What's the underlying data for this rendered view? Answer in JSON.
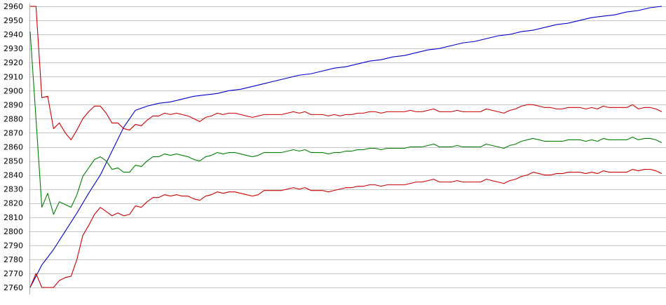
{
  "chart_data": {
    "type": "line",
    "title": "",
    "xlabel": "",
    "ylabel": "",
    "ylim": [
      2760,
      2960
    ],
    "xlim": [
      0,
      108
    ],
    "y_ticks": [
      2760,
      2770,
      2780,
      2790,
      2800,
      2810,
      2820,
      2830,
      2840,
      2850,
      2860,
      2870,
      2880,
      2890,
      2900,
      2910,
      2920,
      2930,
      2940,
      2950,
      2960
    ],
    "y_tick_labels": [
      "2760",
      "2770",
      "2780",
      "2790",
      "2800",
      "2810",
      "2820",
      "2830",
      "2840",
      "2850",
      "2860",
      "2870",
      "2880",
      "2890",
      "2900",
      "2910",
      "2920",
      "2930",
      "2940",
      "2950",
      "2960"
    ],
    "grid": true,
    "legend": "none",
    "series": [
      {
        "color": "#0000cc",
        "x": [
          0,
          2,
          4,
          6,
          8,
          10,
          12,
          14,
          16,
          18,
          20,
          22,
          24,
          26,
          28,
          30,
          32,
          34,
          36,
          38,
          40,
          42,
          44,
          46,
          48,
          50,
          52,
          54,
          56,
          58,
          60,
          62,
          64,
          66,
          68,
          70,
          72,
          74,
          76,
          78,
          80,
          82,
          84,
          86,
          88,
          90,
          92,
          94,
          96,
          98,
          100,
          102,
          104,
          106,
          108
        ],
        "values": [
          2760,
          2776,
          2787,
          2800,
          2813,
          2827,
          2840,
          2857,
          2874,
          2886,
          2889,
          2891,
          2892,
          2894,
          2896,
          2897,
          2898,
          2900,
          2901,
          2903,
          2905,
          2907,
          2909,
          2911,
          2912,
          2914,
          2916,
          2917,
          2919,
          2921,
          2922,
          2924,
          2925,
          2927,
          2929,
          2930,
          2932,
          2934,
          2935,
          2937,
          2939,
          2940,
          2942,
          2943,
          2945,
          2947,
          2948,
          2950,
          2952,
          2953,
          2954,
          2956,
          2957,
          2959,
          2960
        ]
      },
      {
        "color": "#cc0000",
        "x": [
          0,
          1,
          2,
          3,
          4,
          5,
          6,
          7,
          8,
          9,
          10,
          11,
          12,
          13,
          14,
          15,
          16,
          17,
          18,
          19,
          20,
          21,
          22,
          23,
          24,
          25,
          26,
          27,
          28,
          29,
          30,
          31,
          32,
          33,
          34,
          35,
          36,
          37,
          38,
          39,
          40,
          41,
          42,
          43,
          44,
          45,
          46,
          47,
          48,
          49,
          50,
          51,
          52,
          53,
          54,
          55,
          56,
          57,
          58,
          59,
          60,
          61,
          62,
          63,
          64,
          65,
          66,
          67,
          68,
          69,
          70,
          71,
          72,
          73,
          74,
          75,
          76,
          77,
          78,
          79,
          80,
          81,
          82,
          83,
          84,
          85,
          86,
          87,
          88,
          89,
          90,
          91,
          92,
          93,
          94,
          95,
          96,
          97,
          98,
          99,
          100,
          101,
          102,
          103,
          104,
          105,
          106,
          107,
          108
        ],
        "values": [
          2960,
          2960,
          2895,
          2896,
          2873,
          2877,
          2870,
          2865,
          2872,
          2880,
          2885,
          2889,
          2889,
          2884,
          2877,
          2877,
          2873,
          2872,
          2876,
          2875,
          2879,
          2882,
          2882,
          2884,
          2883,
          2884,
          2883,
          2882,
          2880,
          2878,
          2881,
          2882,
          2884,
          2883,
          2884,
          2884,
          2883,
          2882,
          2881,
          2882,
          2883,
          2883,
          2883,
          2883,
          2884,
          2885,
          2884,
          2885,
          2883,
          2883,
          2883,
          2882,
          2883,
          2882,
          2883,
          2883,
          2884,
          2884,
          2885,
          2885,
          2884,
          2885,
          2885,
          2885,
          2885,
          2886,
          2885,
          2885,
          2886,
          2887,
          2885,
          2885,
          2885,
          2886,
          2885,
          2885,
          2885,
          2885,
          2887,
          2886,
          2885,
          2884,
          2886,
          2887,
          2889,
          2890,
          2890,
          2889,
          2888,
          2888,
          2887,
          2887,
          2888,
          2888,
          2888,
          2887,
          2888,
          2887,
          2889,
          2888,
          2888,
          2888,
          2888,
          2890,
          2887,
          2888,
          2888,
          2887,
          2885
        ]
      },
      {
        "color": "#cc0000",
        "x": [
          0,
          1,
          2,
          3,
          4,
          5,
          6,
          7,
          8,
          9,
          10,
          11,
          12,
          13,
          14,
          15,
          16,
          17,
          18,
          19,
          20,
          21,
          22,
          23,
          24,
          25,
          26,
          27,
          28,
          29,
          30,
          31,
          32,
          33,
          34,
          35,
          36,
          37,
          38,
          39,
          40,
          41,
          42,
          43,
          44,
          45,
          46,
          47,
          48,
          49,
          50,
          51,
          52,
          53,
          54,
          55,
          56,
          57,
          58,
          59,
          60,
          61,
          62,
          63,
          64,
          65,
          66,
          67,
          68,
          69,
          70,
          71,
          72,
          73,
          74,
          75,
          76,
          77,
          78,
          79,
          80,
          81,
          82,
          83,
          84,
          85,
          86,
          87,
          88,
          89,
          90,
          91,
          92,
          93,
          94,
          95,
          96,
          97,
          98,
          99,
          100,
          101,
          102,
          103,
          104,
          105,
          106,
          107,
          108
        ],
        "values": [
          2760,
          2770,
          2760,
          2760,
          2760,
          2765,
          2767,
          2768,
          2780,
          2797,
          2804,
          2812,
          2817,
          2814,
          2811,
          2813,
          2811,
          2812,
          2818,
          2817,
          2821,
          2824,
          2824,
          2826,
          2825,
          2826,
          2825,
          2825,
          2823,
          2822,
          2825,
          2826,
          2828,
          2827,
          2828,
          2828,
          2827,
          2826,
          2825,
          2826,
          2829,
          2829,
          2829,
          2829,
          2830,
          2831,
          2830,
          2831,
          2829,
          2829,
          2829,
          2828,
          2829,
          2830,
          2831,
          2831,
          2832,
          2832,
          2833,
          2833,
          2832,
          2833,
          2833,
          2833,
          2833,
          2834,
          2835,
          2835,
          2836,
          2837,
          2835,
          2835,
          2835,
          2836,
          2835,
          2835,
          2835,
          2835,
          2837,
          2836,
          2835,
          2834,
          2836,
          2837,
          2839,
          2840,
          2842,
          2841,
          2840,
          2840,
          2841,
          2841,
          2842,
          2842,
          2842,
          2841,
          2842,
          2841,
          2843,
          2842,
          2842,
          2842,
          2842,
          2844,
          2843,
          2844,
          2844,
          2843,
          2841
        ]
      },
      {
        "color": "#008000",
        "x": [
          0,
          1,
          2,
          3,
          4,
          5,
          6,
          7,
          8,
          9,
          10,
          11,
          12,
          13,
          14,
          15,
          16,
          17,
          18,
          19,
          20,
          21,
          22,
          23,
          24,
          25,
          26,
          27,
          28,
          29,
          30,
          31,
          32,
          33,
          34,
          35,
          36,
          37,
          38,
          39,
          40,
          41,
          42,
          43,
          44,
          45,
          46,
          47,
          48,
          49,
          50,
          51,
          52,
          53,
          54,
          55,
          56,
          57,
          58,
          59,
          60,
          61,
          62,
          63,
          64,
          65,
          66,
          67,
          68,
          69,
          70,
          71,
          72,
          73,
          74,
          75,
          76,
          77,
          78,
          79,
          80,
          81,
          82,
          83,
          84,
          85,
          86,
          87,
          88,
          89,
          90,
          91,
          92,
          93,
          94,
          95,
          96,
          97,
          98,
          99,
          100,
          101,
          102,
          103,
          104,
          105,
          106,
          107,
          108
        ],
        "values": [
          2942,
          2880,
          2817,
          2827,
          2812,
          2821,
          2819,
          2817,
          2826,
          2839,
          2845,
          2851,
          2853,
          2850,
          2844,
          2845,
          2842,
          2842,
          2847,
          2846,
          2850,
          2853,
          2853,
          2855,
          2854,
          2855,
          2854,
          2853,
          2851,
          2850,
          2853,
          2854,
          2856,
          2855,
          2856,
          2856,
          2855,
          2854,
          2853,
          2854,
          2856,
          2856,
          2856,
          2856,
          2857,
          2858,
          2857,
          2858,
          2856,
          2856,
          2856,
          2855,
          2856,
          2856,
          2857,
          2857,
          2858,
          2858,
          2859,
          2859,
          2858,
          2859,
          2859,
          2859,
          2859,
          2860,
          2860,
          2860,
          2861,
          2862,
          2860,
          2860,
          2860,
          2861,
          2860,
          2860,
          2860,
          2860,
          2862,
          2861,
          2860,
          2859,
          2861,
          2862,
          2864,
          2865,
          2866,
          2865,
          2864,
          2864,
          2864,
          2864,
          2865,
          2865,
          2865,
          2864,
          2865,
          2864,
          2866,
          2865,
          2865,
          2865,
          2865,
          2867,
          2865,
          2866,
          2866,
          2865,
          2863
        ]
      }
    ]
  }
}
